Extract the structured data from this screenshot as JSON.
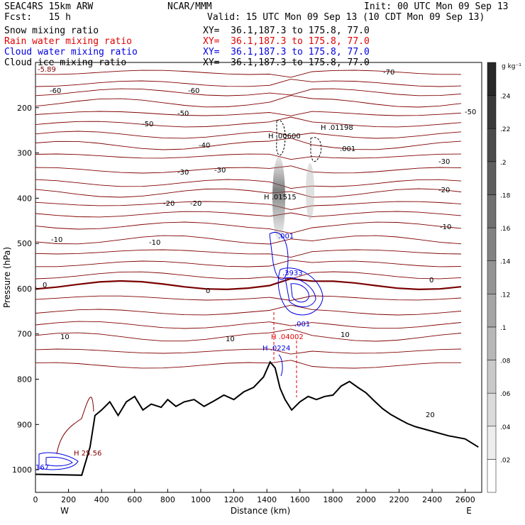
{
  "header": {
    "model": "SEAC4RS 15km ARW",
    "center": "NCAR/MMM",
    "init": "Init: 00 UTC Mon 09 Sep 13",
    "fcst": "Fcst:   15 h",
    "valid": "Valid: 15 UTC Mon 09 Sep 13 (10 CDT Mon 09 Sep 13)"
  },
  "fields": [
    {
      "label": "Snow mixing ratio",
      "xy": "XY=  36.1,187.3 to 175.8, 77.0",
      "color": "#000000"
    },
    {
      "label": "Rain water mixing ratio",
      "xy": "XY=  36.1,187.3 to 175.8, 77.0",
      "color": "#e00000"
    },
    {
      "label": "Cloud water mixing ratio",
      "xy": "XY=  36.1,187.3 to 175.8, 77.0",
      "color": "#0000e0"
    },
    {
      "label": "Cloud ice mixing ratio",
      "xy": "XY=  36.1,187.3 to 175.8, 77.0",
      "color": "#000000"
    }
  ],
  "chart_data": {
    "type": "contour",
    "xlabel": "Distance (km)",
    "ylabel": "Pressure (hPa)",
    "xlim": [
      0,
      2700
    ],
    "ylim": [
      1050,
      100
    ],
    "x_ticks": [
      0,
      200,
      400,
      600,
      800,
      1000,
      1200,
      1400,
      1600,
      1800,
      2000,
      2200,
      2400,
      2600
    ],
    "y_ticks": [
      200,
      300,
      400,
      500,
      600,
      700,
      800,
      900,
      1000
    ],
    "y_tick_labels_shown": [
      200,
      300,
      400,
      500,
      600,
      700,
      800,
      900,
      1000
    ],
    "west_label": "W",
    "east_label": "E",
    "colorbar": {
      "unit": "g kg⁻¹",
      "levels": [
        0.02,
        0.04,
        0.06,
        0.08,
        0.1,
        0.12,
        0.14,
        0.16,
        0.18,
        0.2,
        0.22,
        0.24
      ],
      "labels": [
        ".02",
        ".04",
        ".06",
        ".08",
        ".1",
        ".12",
        ".14",
        ".16",
        ".18",
        ".2",
        ".22",
        ".24"
      ]
    },
    "temperature_labels": [
      "-70",
      "-60",
      "-50",
      "-40",
      "-30",
      "-20",
      "-10",
      "0",
      "10",
      "20"
    ],
    "annotations": [
      "-5.89",
      "H .00600",
      "H .01198",
      ".001",
      "H .01515",
      ".001",
      ".3933",
      "H .04002",
      ".001",
      "H .0224",
      "H 25.56",
      "167"
    ],
    "terrain": [
      [
        0,
        1010
      ],
      [
        280,
        1012
      ],
      [
        330,
        950
      ],
      [
        360,
        880
      ],
      [
        400,
        868
      ],
      [
        450,
        850
      ],
      [
        500,
        880
      ],
      [
        550,
        850
      ],
      [
        600,
        838
      ],
      [
        650,
        868
      ],
      [
        700,
        855
      ],
      [
        760,
        862
      ],
      [
        800,
        845
      ],
      [
        850,
        860
      ],
      [
        900,
        850
      ],
      [
        960,
        845
      ],
      [
        1020,
        860
      ],
      [
        1080,
        848
      ],
      [
        1140,
        835
      ],
      [
        1200,
        845
      ],
      [
        1260,
        828
      ],
      [
        1320,
        818
      ],
      [
        1380,
        795
      ],
      [
        1420,
        762
      ],
      [
        1450,
        775
      ],
      [
        1480,
        820
      ],
      [
        1510,
        845
      ],
      [
        1550,
        868
      ],
      [
        1600,
        850
      ],
      [
        1650,
        838
      ],
      [
        1700,
        845
      ],
      [
        1750,
        838
      ],
      [
        1800,
        835
      ],
      [
        1850,
        815
      ],
      [
        1900,
        805
      ],
      [
        1950,
        818
      ],
      [
        2000,
        830
      ],
      [
        2050,
        848
      ],
      [
        2100,
        865
      ],
      [
        2150,
        878
      ],
      [
        2200,
        888
      ],
      [
        2250,
        898
      ],
      [
        2300,
        905
      ],
      [
        2400,
        915
      ],
      [
        2500,
        925
      ],
      [
        2600,
        932
      ],
      [
        2680,
        950
      ]
    ]
  }
}
